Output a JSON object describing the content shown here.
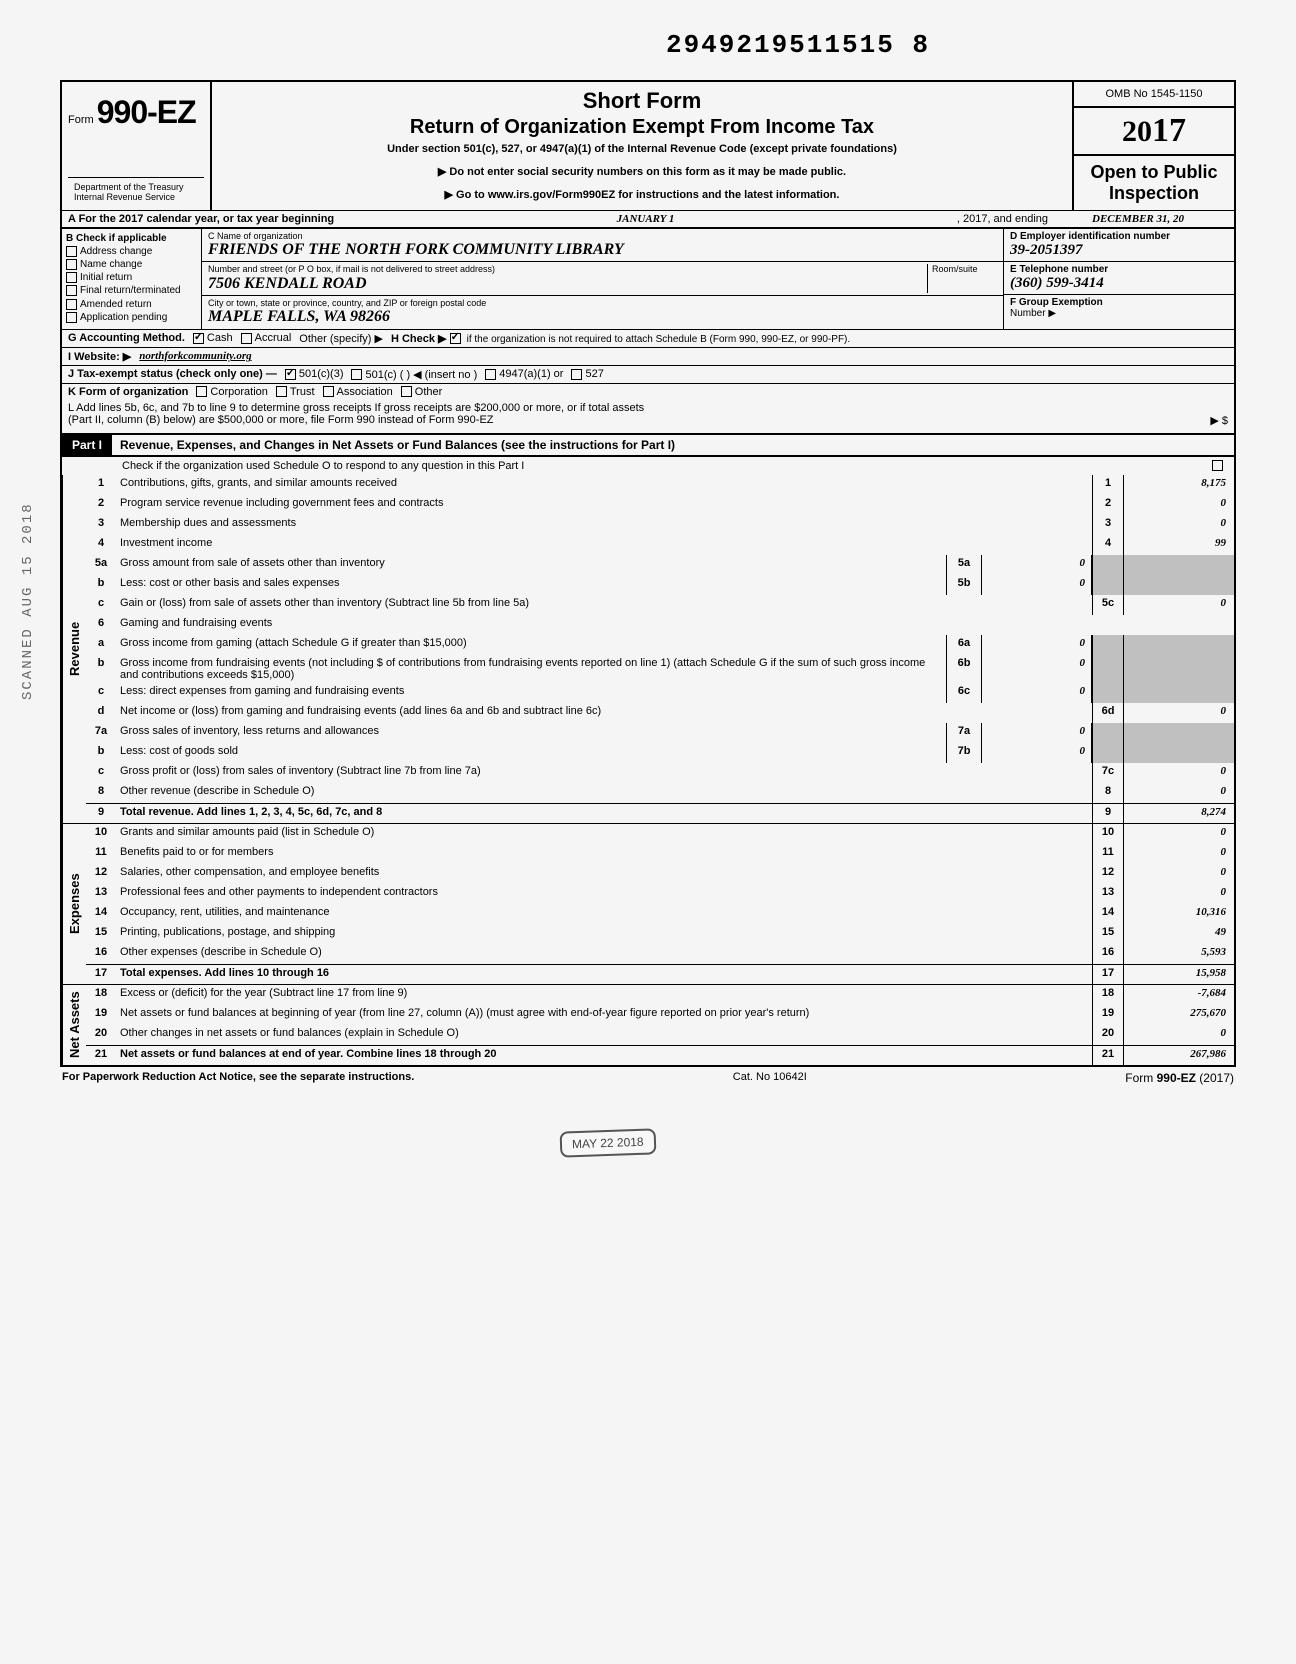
{
  "doc_number": "2949219511515 8",
  "header": {
    "form_prefix": "Form",
    "form_number": "990-EZ",
    "title1": "Short Form",
    "title2": "Return of Organization Exempt From Income Tax",
    "subtitle": "Under section 501(c), 527, or 4947(a)(1) of the Internal Revenue Code (except private foundations)",
    "instr1": "▶ Do not enter social security numbers on this form as it may be made public.",
    "instr2": "▶ Go to www.irs.gov/Form990EZ for instructions and the latest information.",
    "omb": "OMB No 1545-1150",
    "year_prefix": "20",
    "year_suffix": "17",
    "open_public": "Open to Public Inspection",
    "dept": "Department of the Treasury\nInternal Revenue Service"
  },
  "row_a": {
    "label": "A For the 2017 calendar year, or tax year beginning",
    "begin": "JANUARY 1",
    "mid": ", 2017, and ending",
    "end": "DECEMBER 31, 20"
  },
  "section_b": {
    "label": "B  Check if applicable",
    "options": [
      "Address change",
      "Name change",
      "Initial return",
      "Final return/terminated",
      "Amended return",
      "Application pending"
    ]
  },
  "section_c": {
    "name_label": "C Name of organization",
    "name": "FRIENDS OF THE NORTH FORK COMMUNITY LIBRARY",
    "addr_label": "Number and street (or P O box, if mail is not delivered to street address)",
    "room_label": "Room/suite",
    "addr": "7506 KENDALL ROAD",
    "city_label": "City or town, state or province, country, and ZIP or foreign postal code",
    "city": "MAPLE FALLS, WA 98266"
  },
  "section_d": {
    "label": "D Employer identification number",
    "value": "39-2051397"
  },
  "section_e": {
    "label": "E Telephone number",
    "value": "(360) 599-3414"
  },
  "section_f": {
    "label": "F Group Exemption",
    "label2": "Number ▶"
  },
  "row_g": {
    "label": "G Accounting Method.",
    "cash": "Cash",
    "accrual": "Accrual",
    "other": "Other (specify) ▶"
  },
  "row_h": {
    "label": "H Check ▶",
    "text": "if the organization is not required to attach Schedule B (Form 990, 990-EZ, or 990-PF)."
  },
  "row_i": {
    "label": "I  Website: ▶",
    "value": "northforkcommunity.org"
  },
  "row_j": {
    "label": "J Tax-exempt status (check only one) —",
    "opt1": "501(c)(3)",
    "opt2": "501(c) (        ) ◀ (insert no )",
    "opt3": "4947(a)(1) or",
    "opt4": "527"
  },
  "row_k": {
    "label": "K Form of organization",
    "opts": [
      "Corporation",
      "Trust",
      "Association",
      "Other"
    ]
  },
  "row_l": {
    "text1": "L Add lines 5b, 6c, and 7b to line 9 to determine gross receipts  If gross receipts are $200,000 or more, or if total assets",
    "text2": "(Part II, column (B) below) are $500,000 or more, file Form 990 instead of Form 990-EZ",
    "arrow": "▶  $"
  },
  "part1": {
    "label": "Part I",
    "title": "Revenue, Expenses, and Changes in Net Assets or Fund Balances (see the instructions for Part I)",
    "sub": "Check if the organization used Schedule O to respond to any question in this Part I"
  },
  "side_labels": {
    "revenue": "Revenue",
    "expenses": "Expenses",
    "netassets": "Net Assets"
  },
  "lines": [
    {
      "n": "1",
      "desc": "Contributions, gifts, grants, and similar amounts received",
      "rn": "1",
      "rv": "8,175"
    },
    {
      "n": "2",
      "desc": "Program service revenue including government fees and contracts",
      "rn": "2",
      "rv": "0"
    },
    {
      "n": "3",
      "desc": "Membership dues and assessments",
      "rn": "3",
      "rv": "0"
    },
    {
      "n": "4",
      "desc": "Investment income",
      "rn": "4",
      "rv": "99"
    },
    {
      "n": "5a",
      "desc": "Gross amount from sale of assets other than inventory",
      "mn": "5a",
      "mv": "0",
      "shade": true
    },
    {
      "n": "b",
      "desc": "Less: cost or other basis and sales expenses",
      "mn": "5b",
      "mv": "0",
      "shade": true
    },
    {
      "n": "c",
      "desc": "Gain or (loss) from sale of assets other than inventory (Subtract line 5b from line 5a)",
      "rn": "5c",
      "rv": "0"
    },
    {
      "n": "6",
      "desc": "Gaming and fundraising events"
    },
    {
      "n": "a",
      "desc": "Gross income from gaming (attach Schedule G if greater than $15,000)",
      "mn": "6a",
      "mv": "0",
      "shade": true
    },
    {
      "n": "b",
      "desc": "Gross income from fundraising events (not including  $                              of contributions from fundraising events reported on line 1) (attach Schedule G if the sum of such gross income and contributions exceeds $15,000)",
      "mn": "6b",
      "mv": "0",
      "shade": true
    },
    {
      "n": "c",
      "desc": "Less: direct expenses from gaming and fundraising events",
      "mn": "6c",
      "mv": "0",
      "shade": true
    },
    {
      "n": "d",
      "desc": "Net income or (loss) from gaming and fundraising events (add lines 6a and 6b and subtract line 6c)",
      "rn": "6d",
      "rv": "0"
    },
    {
      "n": "7a",
      "desc": "Gross sales of inventory, less returns and allowances",
      "mn": "7a",
      "mv": "0",
      "shade": true
    },
    {
      "n": "b",
      "desc": "Less: cost of goods sold",
      "mn": "7b",
      "mv": "0",
      "shade": true
    },
    {
      "n": "c",
      "desc": "Gross profit or (loss) from sales of inventory (Subtract line 7b from line 7a)",
      "rn": "7c",
      "rv": "0"
    },
    {
      "n": "8",
      "desc": "Other revenue (describe in Schedule O)",
      "rn": "8",
      "rv": "0"
    },
    {
      "n": "9",
      "desc": "Total revenue. Add lines 1, 2, 3, 4, 5c, 6d, 7c, and 8",
      "rn": "9",
      "rv": "8,274",
      "bold": true,
      "bt": true
    }
  ],
  "exp_lines": [
    {
      "n": "10",
      "desc": "Grants and similar amounts paid (list in Schedule O)",
      "rn": "10",
      "rv": "0"
    },
    {
      "n": "11",
      "desc": "Benefits paid to or for members",
      "rn": "11",
      "rv": "0"
    },
    {
      "n": "12",
      "desc": "Salaries, other compensation, and employee benefits",
      "rn": "12",
      "rv": "0"
    },
    {
      "n": "13",
      "desc": "Professional fees and other payments to independent contractors",
      "rn": "13",
      "rv": "0"
    },
    {
      "n": "14",
      "desc": "Occupancy, rent, utilities, and maintenance",
      "rn": "14",
      "rv": "10,316"
    },
    {
      "n": "15",
      "desc": "Printing, publications, postage, and shipping",
      "rn": "15",
      "rv": "49"
    },
    {
      "n": "16",
      "desc": "Other expenses (describe in Schedule O)",
      "rn": "16",
      "rv": "5,593"
    },
    {
      "n": "17",
      "desc": "Total expenses. Add lines 10 through 16",
      "rn": "17",
      "rv": "15,958",
      "bold": true,
      "bt": true
    }
  ],
  "na_lines": [
    {
      "n": "18",
      "desc": "Excess or (deficit) for the year (Subtract line 17 from line 9)",
      "rn": "18",
      "rv": "-7,684"
    },
    {
      "n": "19",
      "desc": "Net assets or fund balances at beginning of year (from line 27, column (A)) (must agree with end-of-year figure reported on prior year's return)",
      "rn": "19",
      "rv": "275,670"
    },
    {
      "n": "20",
      "desc": "Other changes in net assets or fund balances (explain in Schedule O)",
      "rn": "20",
      "rv": "0"
    },
    {
      "n": "21",
      "desc": "Net assets or fund balances at end of year. Combine lines 18 through 20",
      "rn": "21",
      "rv": "267,986",
      "bold": true,
      "bt": true
    }
  ],
  "footer": {
    "left": "For Paperwork Reduction Act Notice, see the separate instructions.",
    "center": "Cat. No  10642I",
    "right": "Form 990-EZ (2017)"
  },
  "stamp": "MAY 22 2018",
  "scan_side": "SCANNED AUG 15 2018",
  "colors": {
    "bg": "#f5f5f5",
    "text": "#000000",
    "shade": "#c0c0c0",
    "part_bg": "#000000",
    "part_fg": "#ffffff"
  }
}
